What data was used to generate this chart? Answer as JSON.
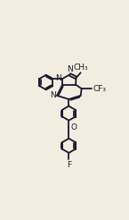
{
  "bg_color": "#f2ede0",
  "line_color": "#1a1a2e",
  "lw": 1.3,
  "fs": 6.5,
  "figsize": [
    1.45,
    2.46
  ],
  "dpi": 100,
  "xlim": [
    -0.05,
    1.05
  ],
  "ylim": [
    -0.05,
    1.05
  ]
}
